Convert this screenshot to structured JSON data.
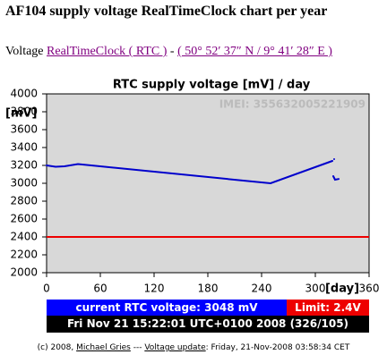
{
  "header": {
    "title": "AF104 supply voltage RealTimeClock chart per year",
    "prefix": "Voltage ",
    "link1": "RealTimeClock ( RTC )",
    "separator": " - ",
    "link2": "( 50° 52′ 37″ N / 9° 41′ 28″ E )"
  },
  "chart_data": {
    "type": "line",
    "title": "RTC supply voltage [mV] / day",
    "ylabel": "[mV]",
    "xlabel": "[day]",
    "watermark": "IMEI: 355632005221909",
    "xlim": [
      0,
      360
    ],
    "xticks": [
      0,
      60,
      120,
      180,
      240,
      300,
      360
    ],
    "ylim": [
      2000,
      4000
    ],
    "yticks": [
      2000,
      2200,
      2400,
      2600,
      2800,
      3000,
      3200,
      3400,
      3600,
      3800,
      4000
    ],
    "background": "#d8d8d8",
    "series": [
      {
        "color": "#0000cc",
        "x": [
          0,
          10,
          20,
          35,
          250,
          319,
          null,
          321,
          null,
          320,
          322,
          326
        ],
        "values": [
          3200,
          3185,
          3190,
          3215,
          3000,
          3250,
          null,
          3270,
          null,
          3080,
          3040,
          3048
        ]
      }
    ],
    "reference_lines": [
      {
        "value": 2400,
        "color": "#ee0000"
      }
    ]
  },
  "status": {
    "current": "current RTC voltage: 3048 mV",
    "limit": "Limit: 2.4V",
    "timestamp": "Fri Nov 21 15:22:01 UTC+0100 2008 (326/105)"
  },
  "footer": {
    "part1": "(c) 2008, ",
    "author": "Michael Gries",
    "part2": " --- ",
    "update_link": "Voltage update",
    "part3": ": Friday, 21-Nov-2008 03:58:34 CET"
  }
}
